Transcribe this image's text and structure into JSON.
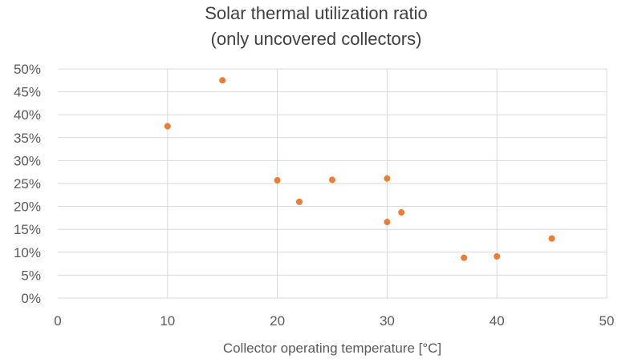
{
  "chart_data": {
    "type": "scatter",
    "title_lines": [
      "Solar thermal utilization ratio",
      "(only uncovered collectors)"
    ],
    "xlabel": "Collector operating temperature [°C]",
    "ylabel": "",
    "xlim": [
      0,
      50
    ],
    "ylim": [
      0,
      0.5
    ],
    "x_ticks": [
      0,
      10,
      20,
      30,
      40,
      50
    ],
    "x_tick_labels": [
      "0",
      "10",
      "20",
      "30",
      "40",
      "50"
    ],
    "y_ticks": [
      0,
      0.05,
      0.1,
      0.15,
      0.2,
      0.25,
      0.3,
      0.35,
      0.4,
      0.45,
      0.5
    ],
    "y_tick_labels": [
      "0%",
      "5%",
      "10%",
      "15%",
      "20%",
      "25%",
      "30%",
      "35%",
      "40%",
      "45%",
      "50%"
    ],
    "grid": true,
    "marker_color": "#ED7D31",
    "points": [
      {
        "x": 10,
        "y": 0.375
      },
      {
        "x": 15,
        "y": 0.475
      },
      {
        "x": 20,
        "y": 0.257
      },
      {
        "x": 22,
        "y": 0.21
      },
      {
        "x": 25,
        "y": 0.258
      },
      {
        "x": 30,
        "y": 0.261
      },
      {
        "x": 30,
        "y": 0.166
      },
      {
        "x": 31.3,
        "y": 0.187
      },
      {
        "x": 37,
        "y": 0.088
      },
      {
        "x": 40,
        "y": 0.091
      },
      {
        "x": 45,
        "y": 0.13
      }
    ]
  }
}
